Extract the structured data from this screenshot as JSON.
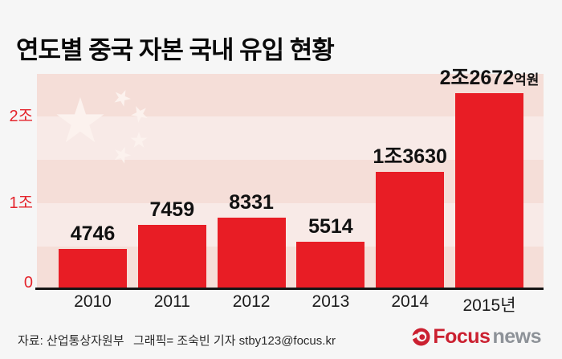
{
  "title": "연도별 중국 자본 국내 유입 현황",
  "chart_data": {
    "type": "bar",
    "title": "연도별 중국 자본 국내 유입 현황",
    "unit": "억원",
    "categories": [
      "2010",
      "2011",
      "2012",
      "2013",
      "2014",
      "2015년"
    ],
    "values": [
      4746,
      7459,
      8331,
      5514,
      13630,
      22672
    ],
    "bars": [
      {
        "category": "2010",
        "value": 4746,
        "label": "4746",
        "suffix": ""
      },
      {
        "category": "2011",
        "value": 7459,
        "label": "7459",
        "suffix": ""
      },
      {
        "category": "2012",
        "value": 8331,
        "label": "8331",
        "suffix": ""
      },
      {
        "category": "2013",
        "value": 5514,
        "label": "5514",
        "suffix": ""
      },
      {
        "category": "2014",
        "value": 13630,
        "label": "1조3630",
        "suffix": ""
      },
      {
        "category": "2015년",
        "value": 22672,
        "label": "2조2672",
        "suffix": "억원"
      }
    ],
    "y_ticks": [
      {
        "label": "0",
        "value": 0
      },
      {
        "label": "1조",
        "value": 10000
      },
      {
        "label": "2조",
        "value": 20000
      }
    ],
    "ylim": [
      0,
      25000
    ],
    "grid": "striped-half-unit-background",
    "legend": null,
    "background_motif": "china-flag-stars-watermark"
  },
  "colors": {
    "page_bg": "#f6f6f6",
    "bar_red": "#e81d25",
    "tick_red": "#e4242c",
    "stripe_dark": "#f5ded8",
    "stripe_light": "#f8eae7",
    "star_fill": "#fcf2ee",
    "axis_line": "#151515",
    "value_text": "#111111",
    "year_text": "#1a1a1a",
    "footer_text": "#2b2b2b",
    "logo_red": "#cb2030",
    "logo_gray": "#8d9298"
  },
  "footer": {
    "source": "자료: 산업통상자원부",
    "credit": "그래픽= 조숙빈 기자 stby123@focus.kr",
    "logo": {
      "brand": "Focus",
      "brand_suffix": "news"
    }
  }
}
